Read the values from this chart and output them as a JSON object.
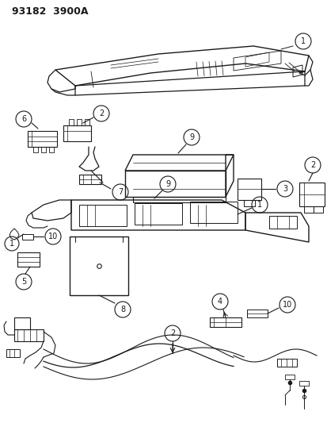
{
  "title": "93182  3900A",
  "bg_color": "#ffffff",
  "lc": "#1a1a1a",
  "fig_width": 4.14,
  "fig_height": 5.33,
  "dpi": 100
}
